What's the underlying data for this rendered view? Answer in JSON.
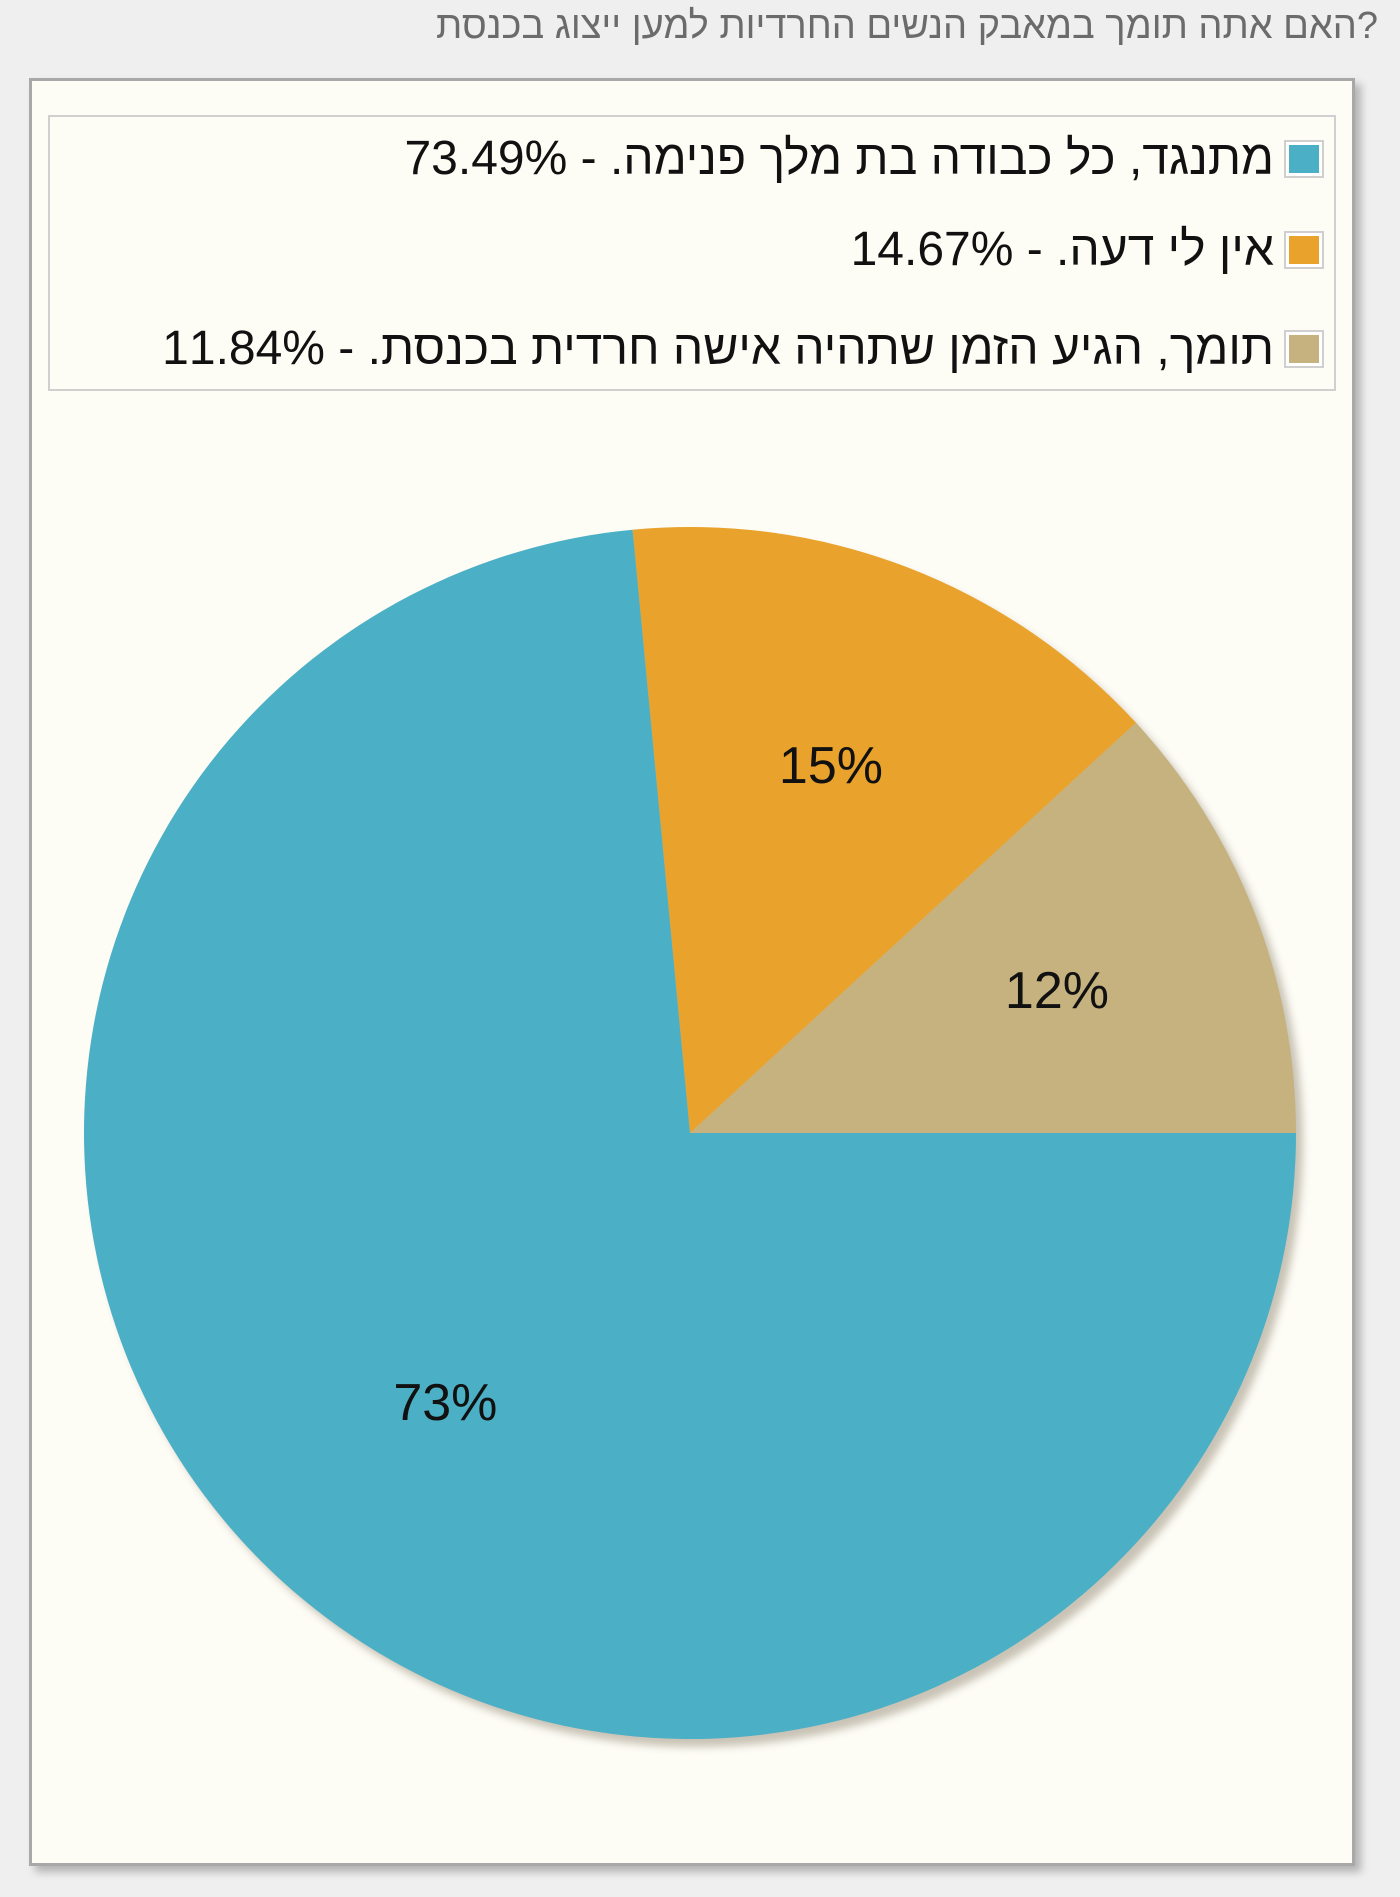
{
  "question": "?האם אתה תומך במאבק הנשים החרדיות למען ייצוג בכנסת",
  "chart_data": {
    "type": "pie",
    "categories": [
      "מתנגד, כל כבודה בת מלך פנימה.",
      "אין לי דעה.",
      "תומך, הגיע הזמן שתהיה אישה חרדית בכנסת."
    ],
    "values": [
      73.49,
      14.67,
      11.84
    ],
    "slice_labels": [
      "73%",
      "15%",
      "12%"
    ],
    "colors": [
      "#4bafc6",
      "#e9a22c",
      "#c6b27f"
    ],
    "legend": [
      "מתנגד, כל כבודה בת מלך פנימה. - 73.49%",
      "אין לי דעה. - 14.67%",
      "תומך, הגיע הזמן שתהיה אישה חרדית בכנסת. - 11.84%"
    ],
    "legend_position": "top",
    "start_angle_deg": 0,
    "direction": "counter-clockwise"
  }
}
